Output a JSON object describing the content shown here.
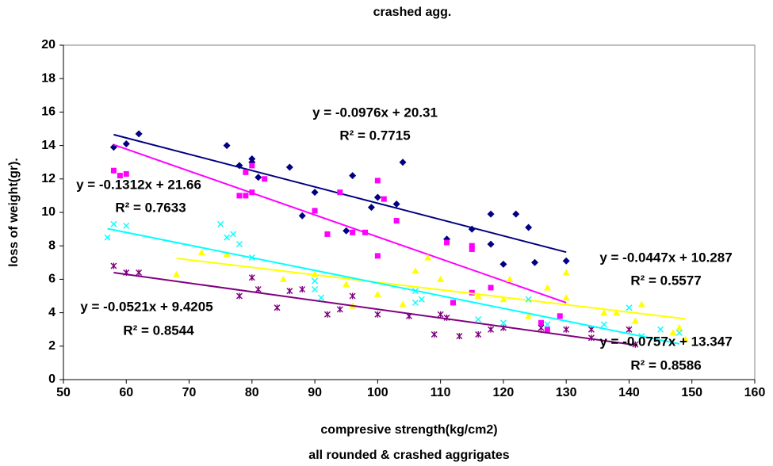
{
  "chart_data": {
    "type": "scatter",
    "title": "crashed agg.",
    "x_label": "compresive strength(kg/cm2)",
    "x_sublabel": "all rounded & crashed aggrigates",
    "y_label": "loss of weight(gr).",
    "xlim": [
      50,
      160
    ],
    "xticks": [
      50,
      60,
      70,
      80,
      90,
      100,
      110,
      120,
      130,
      140,
      150,
      160
    ],
    "ylim": [
      0,
      20
    ],
    "yticks": [
      0,
      2,
      4,
      6,
      8,
      10,
      12,
      14,
      16,
      18,
      20
    ],
    "series": [
      {
        "color": "#000080",
        "marker": "diamond",
        "x": [
          58,
          60,
          62,
          76,
          78,
          80,
          80,
          81,
          86,
          88,
          90,
          95,
          96,
          99,
          100,
          103,
          104,
          111,
          115,
          118,
          118,
          120,
          122,
          124,
          125,
          130
        ],
        "values": [
          13.9,
          14.1,
          14.7,
          14.0,
          12.8,
          13.2,
          13.0,
          12.1,
          12.7,
          9.8,
          11.2,
          8.9,
          12.2,
          10.3,
          10.9,
          10.5,
          13.0,
          8.4,
          9.0,
          9.9,
          8.1,
          6.9,
          9.9,
          9.1,
          7.0,
          7.1
        ],
        "trend_x": [
          58,
          130
        ],
        "trend_y": [
          14.65,
          7.62
        ],
        "equation": "y = -0.0976x + 20.31",
        "r_squared": "R² = 0.7715"
      },
      {
        "color": "#FF00FF",
        "marker": "square",
        "x": [
          58,
          59,
          60,
          78,
          79,
          79,
          80,
          80,
          82,
          90,
          92,
          94,
          96,
          98,
          100,
          100,
          101,
          103,
          111,
          112,
          115,
          115,
          115,
          118,
          126,
          127,
          129
        ],
        "values": [
          12.5,
          12.2,
          12.3,
          11.0,
          11.0,
          12.4,
          12.8,
          11.2,
          12.0,
          10.1,
          8.7,
          11.2,
          8.8,
          8.8,
          11.9,
          7.4,
          10.8,
          9.5,
          8.2,
          4.6,
          8.0,
          7.8,
          5.2,
          5.5,
          3.4,
          3.0,
          3.8
        ],
        "trend_x": [
          58,
          130
        ],
        "trend_y": [
          14.05,
          4.6
        ],
        "equation": "y = -0.1312x + 21.66",
        "r_squared": "R² = 0.7633"
      },
      {
        "color": "#FFFF00",
        "marker": "triangle",
        "x": [
          68,
          72,
          76,
          85,
          90,
          95,
          96,
          100,
          104,
          106,
          108,
          110,
          116,
          120,
          121,
          124,
          127,
          130,
          130,
          136,
          138,
          141,
          142,
          147,
          148,
          149
        ],
        "values": [
          6.3,
          7.6,
          7.5,
          6.0,
          6.3,
          5.7,
          4.4,
          5.1,
          4.5,
          6.5,
          7.3,
          6.0,
          5.0,
          4.8,
          6.0,
          3.8,
          5.5,
          4.9,
          6.4,
          4.0,
          4.0,
          3.5,
          4.5,
          2.8,
          3.1,
          2.4
        ],
        "trend_x": [
          68,
          149
        ],
        "trend_y": [
          7.25,
          3.63
        ],
        "equation": "y = -0.0447x + 10.287",
        "r_squared": "R² = 0.5577"
      },
      {
        "color": "#800080",
        "marker": "asterisk",
        "x": [
          58,
          60,
          62,
          78,
          80,
          81,
          84,
          86,
          88,
          92,
          94,
          96,
          100,
          105,
          109,
          110,
          111,
          113,
          116,
          118,
          120,
          126,
          130,
          134,
          134,
          140,
          141
        ],
        "values": [
          6.8,
          6.4,
          6.4,
          5.0,
          6.1,
          5.4,
          4.3,
          5.3,
          5.4,
          3.9,
          4.2,
          5.0,
          3.9,
          3.8,
          2.7,
          3.9,
          3.7,
          2.6,
          2.7,
          3.0,
          3.1,
          3.1,
          3.0,
          3.0,
          2.5,
          3.0,
          2.1
        ],
        "trend_x": [
          58,
          141
        ],
        "trend_y": [
          6.4,
          2.07
        ],
        "equation": "y = -0.0521x + 9.4205",
        "r_squared": "R² = 0.8544"
      },
      {
        "color": "#00FFFF",
        "marker": "x",
        "x": [
          57,
          58,
          60,
          75,
          76,
          77,
          78,
          80,
          90,
          90,
          91,
          106,
          106,
          107,
          116,
          120,
          124,
          127,
          136,
          140,
          142,
          145,
          148
        ],
        "values": [
          8.5,
          9.3,
          9.2,
          9.3,
          8.5,
          8.7,
          8.1,
          7.3,
          5.9,
          5.4,
          4.9,
          5.3,
          4.6,
          4.8,
          3.6,
          3.4,
          4.8,
          3.3,
          3.3,
          4.3,
          2.6,
          3.0,
          2.8
        ],
        "trend_x": [
          57,
          148
        ],
        "trend_y": [
          9.03,
          2.14
        ],
        "equation": "y = -0.0757x + 13.347",
        "r_squared": "R² = 0.8586"
      }
    ]
  }
}
